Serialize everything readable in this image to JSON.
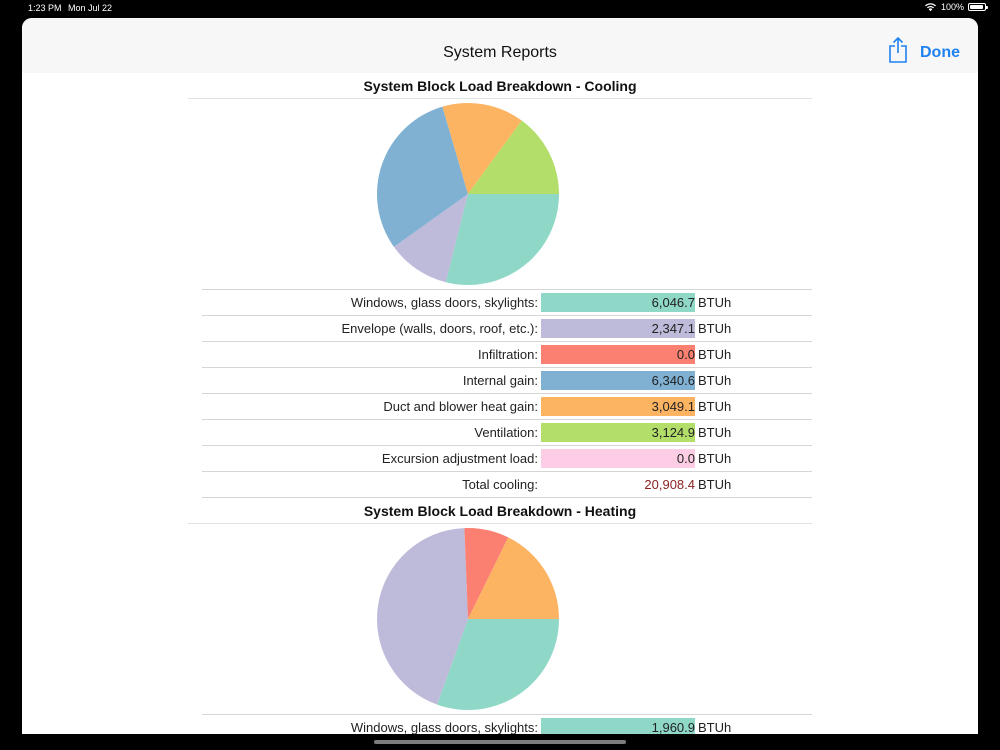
{
  "status_bar": {
    "time": "1:23 PM",
    "date": "Mon Jul 22",
    "battery": "100%"
  },
  "nav": {
    "title": "System Reports",
    "done_label": "Done",
    "share_icon": "share-icon"
  },
  "cooling": {
    "title": "System Block Load Breakdown - Cooling",
    "unit": "BTUh",
    "rows": [
      {
        "label": "Windows, glass doors, skylights:",
        "value": "6,046.7",
        "color": "#8fd8c8"
      },
      {
        "label": "Envelope (walls, doors, roof, etc.):",
        "value": "2,347.1",
        "color": "#bebada"
      },
      {
        "label": "Infiltration:",
        "value": "0.0",
        "color": "#fb8072"
      },
      {
        "label": "Internal gain:",
        "value": "6,340.6",
        "color": "#80b1d3"
      },
      {
        "label": "Duct and blower heat gain:",
        "value": "3,049.1",
        "color": "#fdb462"
      },
      {
        "label": "Ventilation:",
        "value": "3,124.9",
        "color": "#b3de69"
      },
      {
        "label": "Excursion adjustment load:",
        "value": "0.0",
        "color": "#fccde5"
      }
    ],
    "total_label": "Total cooling:",
    "total_value": "20,908.4",
    "total_color": "#8a1f1f"
  },
  "heating": {
    "title": "System Block Load Breakdown - Heating",
    "unit": "BTUh",
    "rows": [
      {
        "label": "Windows, glass doors, skylights:",
        "value": "1,960.9",
        "color": "#8fd8c8"
      }
    ],
    "pie_colors": [
      "#8fd8c8",
      "#bebada",
      "#fb8072",
      "#fdb462"
    ]
  }
}
